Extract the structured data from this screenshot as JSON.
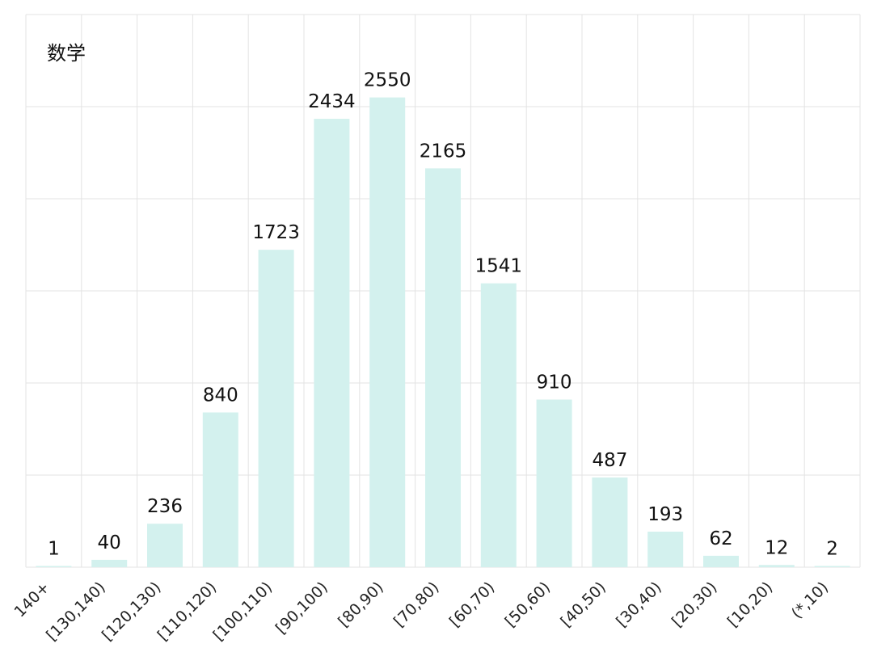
{
  "chart_data": {
    "type": "bar",
    "title": "数学",
    "xlabel": "",
    "ylabel": "",
    "categories": [
      "140+",
      "[130,140)",
      "[120,130)",
      "[110,120)",
      "[100,110)",
      "[90,100)",
      "[80,90)",
      "[70,80)",
      "[60,70)",
      "[50,60)",
      "[40,50)",
      "[30,40)",
      "[20,30)",
      "[10,20)",
      "(*,10)"
    ],
    "values": [
      1,
      40,
      236,
      840,
      1723,
      2434,
      2550,
      2165,
      1541,
      910,
      487,
      193,
      62,
      12,
      2
    ],
    "ylim": [
      0,
      3000
    ],
    "grid": true,
    "legend": "none",
    "bar_color": "#d3f1ee"
  }
}
